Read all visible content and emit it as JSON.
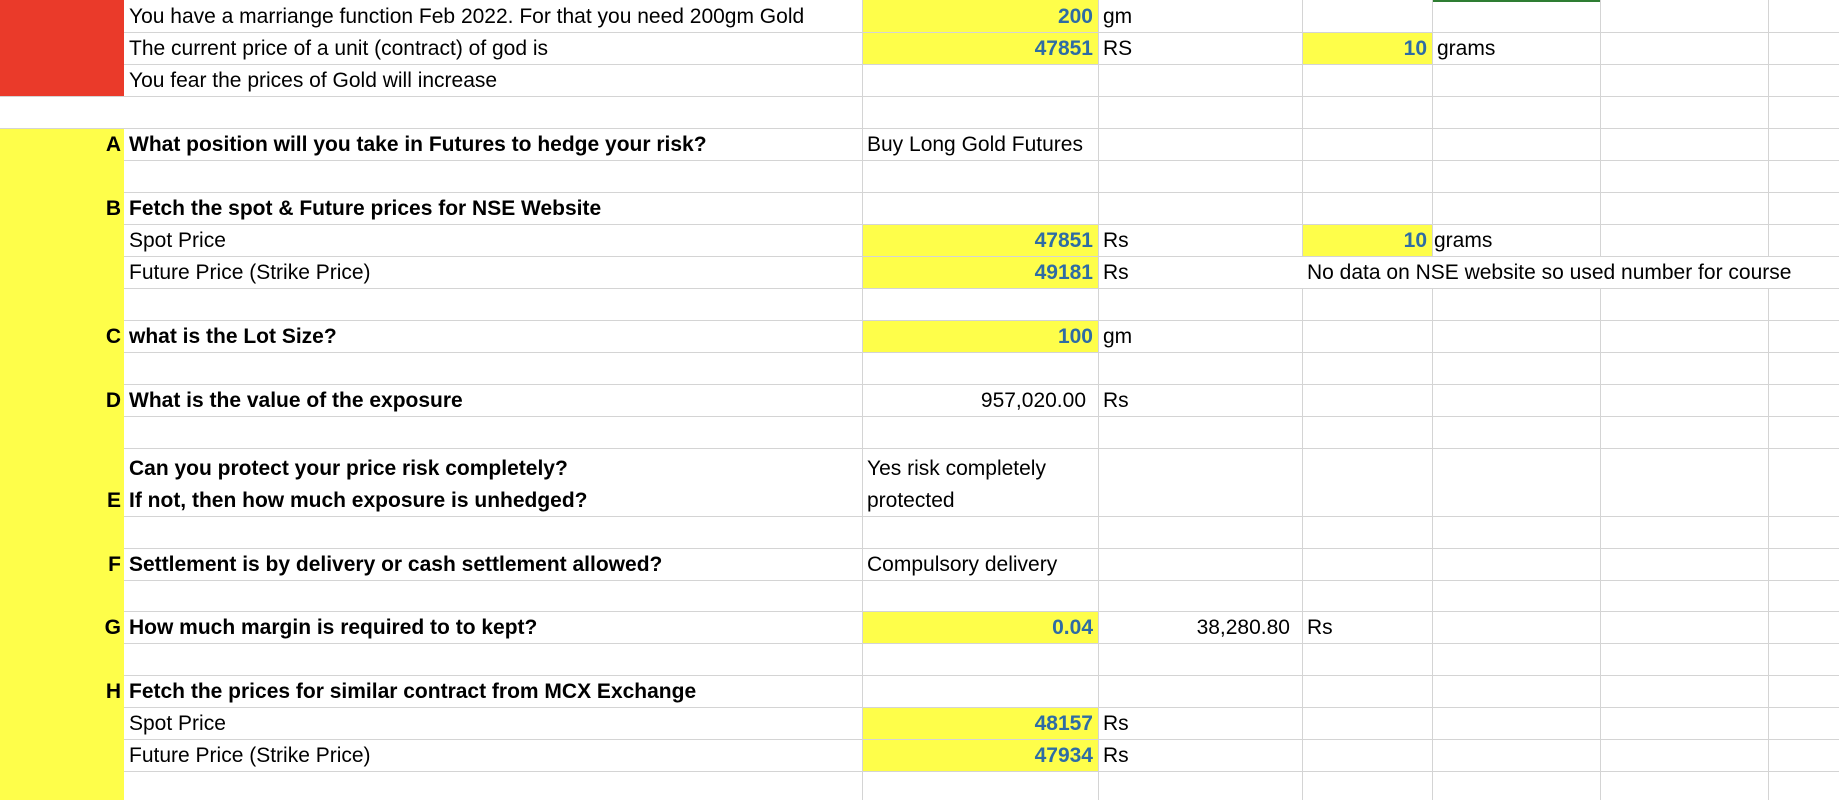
{
  "colors": {
    "red": "#ea3a2a",
    "yellow": "#fefe4a",
    "value_blue": "#2e6ca4",
    "grid": "#d4d4d4"
  },
  "intro": {
    "line1": "You have a marriange function Feb 2022. For that you need 200gm Gold",
    "line1_value": "200",
    "line1_unit": "gm",
    "line2": "The current price of a unit (contract) of god is",
    "line2_value": "47851",
    "line2_unit": "RS",
    "line2_qty": "10",
    "line2_qty_unit": "grams",
    "line3": "You fear the prices of Gold will increase"
  },
  "A": {
    "letter": "A",
    "question": "What position will you take in Futures to hedge your risk?",
    "answer": "Buy Long Gold Futures"
  },
  "B": {
    "letter": "B",
    "question": "Fetch the spot & Future prices for NSE Website",
    "spot_label": "Spot Price",
    "spot_value": "47851",
    "spot_unit": "Rs",
    "spot_qty": "10",
    "spot_qty_unit": "grams",
    "future_label": "Future Price (Strike Price)",
    "future_value": "49181",
    "future_unit": "Rs",
    "note": "No data on NSE website so used number for course"
  },
  "C": {
    "letter": "C",
    "question": "what is the Lot Size?",
    "value": "100",
    "unit": "gm"
  },
  "D": {
    "letter": "D",
    "question": "What is the value of the exposure",
    "value": "957,020.00",
    "unit": "Rs"
  },
  "E": {
    "letter": "E",
    "question1": "Can you protect your price risk completely?",
    "question2": "If not, then how much exposure is unhedged?",
    "answer1": "Yes risk completely",
    "answer2": "protected"
  },
  "F": {
    "letter": "F",
    "question": "Settlement is by delivery or cash settlement allowed?",
    "answer": "Compulsory delivery"
  },
  "G": {
    "letter": "G",
    "question": "How much margin is required to to kept?",
    "rate": "0.04",
    "value": "38,280.80",
    "unit": "Rs"
  },
  "H": {
    "letter": "H",
    "question": "Fetch the prices for similar contract from MCX Exchange",
    "spot_label": "Spot Price",
    "spot_value": "48157",
    "spot_unit": "Rs",
    "future_label": "Future Price (Strike Price)",
    "future_value": "47934",
    "future_unit": "Rs"
  }
}
